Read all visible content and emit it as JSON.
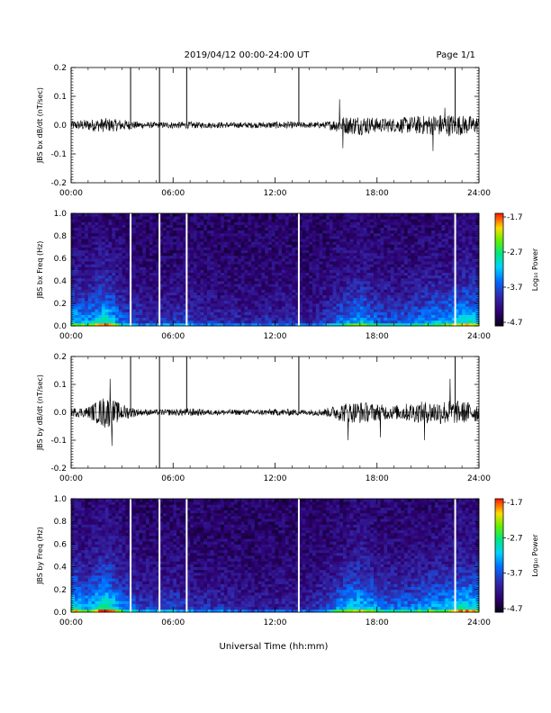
{
  "header": {
    "date_range": "2019/04/12  00:00-24:00 UT",
    "page": "Page 1/1"
  },
  "xlabel": "Universal Time (hh:mm)",
  "time_ticks": [
    "00:00",
    "06:00",
    "12:00",
    "18:00",
    "24:00"
  ],
  "colorbar": {
    "label": "Log₁₀ Power",
    "ticks": [
      "-1.7",
      "-2.7",
      "-3.7",
      "-4.7"
    ],
    "range": [
      -4.7,
      -1.7
    ]
  },
  "chart_data": [
    {
      "type": "line",
      "id": "bx_dbdt",
      "ylabel": "JBS bx dB/dt (nT/sec)",
      "xlim_hours": [
        0,
        24
      ],
      "ylim": [
        -0.2,
        0.2
      ],
      "yticks": [
        "0.2",
        "0.1",
        "0.0",
        "-0.1",
        "-0.2"
      ],
      "envelope_hours": [
        0,
        1,
        2,
        3,
        4,
        5,
        6,
        7,
        8,
        9,
        10,
        11,
        12,
        13,
        14,
        15,
        16,
        17,
        18,
        19,
        20,
        21,
        22,
        23,
        24
      ],
      "envelope_amplitude": [
        0.015,
        0.02,
        0.025,
        0.02,
        0.012,
        0.01,
        0.012,
        0.012,
        0.01,
        0.01,
        0.01,
        0.01,
        0.012,
        0.012,
        0.01,
        0.012,
        0.03,
        0.035,
        0.025,
        0.025,
        0.03,
        0.035,
        0.04,
        0.035,
        0.03
      ],
      "spikes": [
        {
          "t": 15.8,
          "v": 0.09
        },
        {
          "t": 16.0,
          "v": -0.08
        },
        {
          "t": 21.3,
          "v": -0.09
        },
        {
          "t": 22.0,
          "v": 0.06
        }
      ],
      "markers": [
        {
          "t": 3.5,
          "from": 0.2,
          "to": 0.0
        },
        {
          "t": 5.2,
          "from": 0.2,
          "to": -0.2
        },
        {
          "t": 6.8,
          "from": 0.2,
          "to": 0.0
        },
        {
          "t": 13.4,
          "from": 0.2,
          "to": 0.0
        },
        {
          "t": 22.6,
          "from": 0.2,
          "to": 0.0
        }
      ]
    },
    {
      "type": "heatmap",
      "id": "bx_freq",
      "ylabel": "JBS bx Freq (Hz)",
      "xlim_hours": [
        0,
        24
      ],
      "ylim": [
        0,
        1.0
      ],
      "yticks": [
        "1.0",
        "0.8",
        "0.6",
        "0.4",
        "0.2",
        "0.0"
      ],
      "activity_hours": [
        0,
        1,
        2,
        3,
        4,
        5,
        6,
        7,
        8,
        9,
        10,
        11,
        12,
        13,
        14,
        15,
        16,
        17,
        18,
        19,
        20,
        21,
        22,
        23,
        24
      ],
      "activity_level": [
        0.7,
        0.55,
        0.85,
        0.45,
        0.3,
        0.25,
        0.3,
        0.3,
        0.25,
        0.25,
        0.22,
        0.22,
        0.25,
        0.25,
        0.2,
        0.3,
        0.5,
        0.65,
        0.45,
        0.4,
        0.45,
        0.55,
        0.6,
        0.75,
        0.7
      ],
      "gaps_hours": [
        3.5,
        5.2,
        6.8,
        13.4,
        22.6
      ]
    },
    {
      "type": "line",
      "id": "by_dbdt",
      "ylabel": "JBS by dB/dt (nT/sec)",
      "xlim_hours": [
        0,
        24
      ],
      "ylim": [
        -0.2,
        0.2
      ],
      "yticks": [
        "0.2",
        "0.1",
        "0.0",
        "-0.1",
        "-0.2"
      ],
      "envelope_hours": [
        0,
        1,
        2,
        3,
        4,
        5,
        6,
        7,
        8,
        9,
        10,
        11,
        12,
        13,
        14,
        15,
        16,
        17,
        18,
        19,
        20,
        21,
        22,
        23,
        24
      ],
      "envelope_amplitude": [
        0.015,
        0.02,
        0.06,
        0.03,
        0.012,
        0.01,
        0.012,
        0.015,
        0.01,
        0.01,
        0.01,
        0.01,
        0.012,
        0.012,
        0.01,
        0.015,
        0.035,
        0.04,
        0.03,
        0.025,
        0.035,
        0.04,
        0.045,
        0.04,
        0.035
      ],
      "spikes": [
        {
          "t": 2.3,
          "v": 0.12
        },
        {
          "t": 2.4,
          "v": -0.12
        },
        {
          "t": 16.3,
          "v": -0.1
        },
        {
          "t": 18.2,
          "v": -0.09
        },
        {
          "t": 20.8,
          "v": -0.1
        },
        {
          "t": 22.3,
          "v": 0.12
        }
      ],
      "markers": [
        {
          "t": 3.5,
          "from": 0.2,
          "to": 0.0
        },
        {
          "t": 5.2,
          "from": 0.2,
          "to": -0.2
        },
        {
          "t": 6.8,
          "from": 0.2,
          "to": 0.0
        },
        {
          "t": 13.4,
          "from": 0.2,
          "to": 0.0
        },
        {
          "t": 22.6,
          "from": 0.2,
          "to": 0.0
        }
      ]
    },
    {
      "type": "heatmap",
      "id": "by_freq",
      "ylabel": "JBS by Freq (Hz)",
      "xlim_hours": [
        0,
        24
      ],
      "ylim": [
        0,
        1.0
      ],
      "yticks": [
        "1.0",
        "0.8",
        "0.6",
        "0.4",
        "0.2",
        "0.0"
      ],
      "activity_hours": [
        0,
        1,
        2,
        3,
        4,
        5,
        6,
        7,
        8,
        9,
        10,
        11,
        12,
        13,
        14,
        15,
        16,
        17,
        18,
        19,
        20,
        21,
        22,
        23,
        24
      ],
      "activity_level": [
        0.8,
        0.6,
        0.95,
        0.55,
        0.35,
        0.3,
        0.35,
        0.3,
        0.25,
        0.25,
        0.2,
        0.2,
        0.2,
        0.22,
        0.22,
        0.35,
        0.6,
        0.75,
        0.55,
        0.45,
        0.5,
        0.6,
        0.65,
        0.8,
        0.75
      ],
      "gaps_hours": [
        3.5,
        5.2,
        6.8,
        13.4,
        22.6
      ]
    }
  ]
}
